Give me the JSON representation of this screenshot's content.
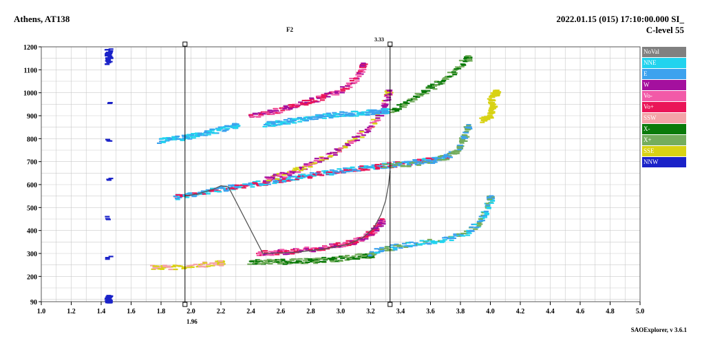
{
  "header": {
    "station": "Athens, AT138",
    "datetime": "2022.01.15 (015) 17:10:00.000 SI_",
    "clevel": "C-level 55",
    "layer_label": "F2",
    "fmax_label": "3.33",
    "fmin_label": "1.96",
    "version": "SAOExplorer, v 3.6.1"
  },
  "colors": {
    "NoVal": "#808080",
    "NNE": "#22d3ee",
    "E": "#3da2ee",
    "W": "#a4109e",
    "Vo-": "#f25aa8",
    "Vo+": "#ea1558",
    "SSW": "#f4a3a8",
    "X-": "#0a7a0a",
    "X+": "#74ad5d",
    "SSE": "#d8d214",
    "NNW": "#1a22c8"
  },
  "legend": [
    {
      "key": "NoVal",
      "label": "NoVal"
    },
    {
      "key": "NNE",
      "label": "NNE"
    },
    {
      "key": "E",
      "label": "E"
    },
    {
      "key": "W",
      "label": "W"
    },
    {
      "key": "Vo-",
      "label": "Vo-"
    },
    {
      "key": "Vo+",
      "label": "Vo+"
    },
    {
      "key": "SSW",
      "label": "SSW"
    },
    {
      "key": "X-",
      "label": "X-"
    },
    {
      "key": "X+",
      "label": "X+"
    },
    {
      "key": "SSE",
      "label": "SSE"
    },
    {
      "key": "NNW",
      "label": "NNW"
    }
  ],
  "chart_data": {
    "type": "scatter",
    "title": "",
    "xlabel": "",
    "ylabel": "",
    "xlim": [
      1.0,
      5.0
    ],
    "ylim": [
      90,
      1200
    ],
    "grid": true,
    "legend_position": "right",
    "x_ticks": [
      1.0,
      1.2,
      1.4,
      1.6,
      1.8,
      2.0,
      2.2,
      2.4,
      2.6,
      2.8,
      3.0,
      3.2,
      3.4,
      3.6,
      3.8,
      4.0,
      4.2,
      4.4,
      4.6,
      4.8,
      5.0
    ],
    "x_tick_labels": [
      "1.0",
      "1.2",
      "1.4",
      "1.6",
      "1.8",
      "2.0",
      "2.2",
      "2.4",
      "2.6",
      "2.8",
      "3.0",
      "3.2",
      "3.4",
      "3.6",
      "3.8",
      "4.0",
      "4.2",
      "4.4",
      "4.6",
      "4.8",
      "5.0"
    ],
    "y_ticks": [
      90,
      200,
      300,
      400,
      500,
      600,
      700,
      800,
      900,
      1000,
      1100,
      1200
    ],
    "y_tick_labels": [
      "90",
      "200",
      "300",
      "400",
      "500",
      "600",
      "700",
      "800",
      "900",
      "1000",
      "1100",
      "1200"
    ],
    "markers": [
      {
        "x": 1.96,
        "label": "1.96"
      },
      {
        "x": 3.33,
        "label": "3.33"
      }
    ],
    "profile": [
      [
        1.96,
        550
      ],
      [
        2.05,
        560
      ],
      [
        2.15,
        580
      ],
      [
        2.2,
        595
      ],
      [
        2.25,
        590
      ],
      [
        2.48,
        300
      ],
      [
        2.7,
        305
      ],
      [
        2.9,
        320
      ],
      [
        3.05,
        340
      ],
      [
        3.15,
        370
      ],
      [
        3.22,
        410
      ],
      [
        3.27,
        470
      ],
      [
        3.3,
        530
      ],
      [
        3.32,
        600
      ],
      [
        3.33,
        660
      ]
    ],
    "traces": [
      {
        "name": "o-F2",
        "color_keys": [
          "Vo+",
          "Vo-",
          "W"
        ],
        "points": [
          [
            2.45,
            300
          ],
          [
            2.55,
            303
          ],
          [
            2.65,
            308
          ],
          [
            2.75,
            314
          ],
          [
            2.85,
            322
          ],
          [
            2.95,
            332
          ],
          [
            3.05,
            345
          ],
          [
            3.12,
            360
          ],
          [
            3.18,
            380
          ],
          [
            3.23,
            405
          ],
          [
            3.27,
            440
          ]
        ]
      },
      {
        "name": "o-F1",
        "color_keys": [
          "X-",
          "X+"
        ],
        "points": [
          [
            2.4,
            262
          ],
          [
            2.5,
            263
          ],
          [
            2.6,
            264
          ],
          [
            2.7,
            266
          ],
          [
            2.8,
            268
          ],
          [
            2.9,
            272
          ],
          [
            3.0,
            278
          ],
          [
            3.1,
            285
          ],
          [
            3.2,
            292
          ]
        ]
      },
      {
        "name": "x-F2",
        "color_keys": [
          "E",
          "NNE",
          "X+"
        ],
        "points": [
          [
            3.2,
            300
          ],
          [
            3.3,
            320
          ],
          [
            3.4,
            335
          ],
          [
            3.55,
            345
          ],
          [
            3.7,
            360
          ],
          [
            3.85,
            390
          ],
          [
            3.92,
            430
          ],
          [
            3.97,
            480
          ],
          [
            4.0,
            540
          ]
        ]
      },
      {
        "name": "second-hop-o",
        "color_keys": [
          "E",
          "NNE",
          "Vo+"
        ],
        "points": [
          [
            1.9,
            545
          ],
          [
            2.0,
            555
          ],
          [
            2.1,
            568
          ],
          [
            2.2,
            580
          ],
          [
            2.3,
            590
          ],
          [
            2.4,
            600
          ],
          [
            2.5,
            610
          ],
          [
            2.6,
            620
          ],
          [
            2.7,
            630
          ],
          [
            2.8,
            640
          ],
          [
            2.9,
            650
          ],
          [
            3.0,
            660
          ],
          [
            3.1,
            668
          ],
          [
            3.2,
            675
          ],
          [
            3.3,
            682
          ],
          [
            3.4,
            690
          ],
          [
            3.5,
            700
          ],
          [
            3.6,
            710
          ],
          [
            3.7,
            720
          ]
        ]
      },
      {
        "name": "second-hop-upper",
        "color_keys": [
          "W",
          "Vo-",
          "SSE"
        ],
        "points": [
          [
            2.5,
            620
          ],
          [
            2.6,
            640
          ],
          [
            2.7,
            660
          ],
          [
            2.8,
            690
          ],
          [
            2.9,
            720
          ],
          [
            3.0,
            760
          ],
          [
            3.1,
            800
          ],
          [
            3.2,
            850
          ],
          [
            3.28,
            920
          ],
          [
            3.32,
            1000
          ]
        ]
      },
      {
        "name": "third-hop",
        "color_keys": [
          "E",
          "NNE"
        ],
        "points": [
          [
            1.8,
            790
          ],
          [
            1.9,
            800
          ],
          [
            2.0,
            810
          ],
          [
            2.1,
            825
          ],
          [
            2.2,
            840
          ],
          [
            2.3,
            855
          ]
        ]
      },
      {
        "name": "third-hop-upper",
        "color_keys": [
          "Vo+",
          "Vo-",
          "W"
        ],
        "points": [
          [
            2.4,
            895
          ],
          [
            2.5,
            910
          ],
          [
            2.6,
            925
          ],
          [
            2.7,
            945
          ],
          [
            2.8,
            965
          ],
          [
            2.9,
            985
          ],
          [
            3.0,
            1010
          ],
          [
            3.1,
            1060
          ],
          [
            3.15,
            1120
          ]
        ]
      },
      {
        "name": "third-hop-mid",
        "color_keys": [
          "E",
          "NNE"
        ],
        "points": [
          [
            2.5,
            860
          ],
          [
            2.6,
            870
          ],
          [
            2.7,
            880
          ],
          [
            2.8,
            890
          ],
          [
            2.9,
            900
          ],
          [
            3.0,
            905
          ],
          [
            3.1,
            910
          ],
          [
            3.2,
            915
          ],
          [
            3.3,
            920
          ]
        ]
      },
      {
        "name": "x-third",
        "color_keys": [
          "X+",
          "X-"
        ],
        "points": [
          [
            3.35,
            920
          ],
          [
            3.45,
            960
          ],
          [
            3.55,
            1000
          ],
          [
            3.65,
            1040
          ],
          [
            3.75,
            1090
          ],
          [
            3.85,
            1150
          ]
        ]
      },
      {
        "name": "x-second",
        "color_keys": [
          "X+",
          "E"
        ],
        "points": [
          [
            3.3,
            680
          ],
          [
            3.45,
            690
          ],
          [
            3.6,
            700
          ],
          [
            3.7,
            720
          ],
          [
            3.78,
            750
          ],
          [
            3.82,
            800
          ],
          [
            3.85,
            850
          ]
        ]
      },
      {
        "name": "sse-cluster",
        "color_keys": [
          "SSE"
        ],
        "points": [
          [
            3.95,
            880
          ],
          [
            4.0,
            900
          ],
          [
            4.02,
            940
          ],
          [
            4.0,
            980
          ],
          [
            4.04,
            1000
          ]
        ]
      },
      {
        "name": "nnw-left",
        "color_keys": [
          "NNW"
        ],
        "points": [
          [
            1.45,
            1180
          ],
          [
            1.45,
            1160
          ],
          [
            1.45,
            1130
          ],
          [
            1.45,
            110
          ],
          [
            1.45,
            95
          ]
        ]
      },
      {
        "name": "low-ssw",
        "color_keys": [
          "SSW",
          "SSE"
        ],
        "points": [
          [
            1.75,
            237
          ],
          [
            1.85,
            238
          ],
          [
            2.05,
            250
          ],
          [
            2.2,
            258
          ]
        ]
      }
    ]
  }
}
